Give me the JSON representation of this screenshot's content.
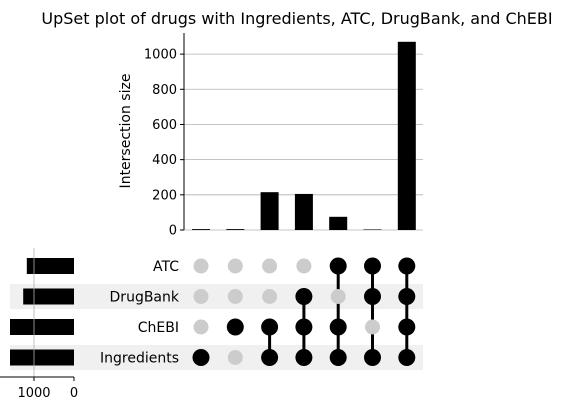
{
  "chart_data": {
    "type": "bar",
    "title": "UpSet plot of drugs with Ingredients, ATC, DrugBank, and ChEBI",
    "ylabel": "Intersection size",
    "ylim": [
      0,
      1120
    ],
    "yticks": [
      "0",
      "200",
      "400",
      "600",
      "800",
      "1000"
    ],
    "ytick_values": [
      0,
      200,
      400,
      600,
      800,
      1000
    ],
    "grid": true,
    "sets": [
      "ATC",
      "DrugBank",
      "ChEBI",
      "Ingredients"
    ],
    "set_sizes": [
      1180,
      1270,
      1600,
      1600
    ],
    "set_size_ticks": [
      "1000",
      "0"
    ],
    "set_size_tick_values": [
      1000,
      0
    ],
    "intersections": [
      {
        "members": [
          "Ingredients"
        ],
        "value": 5
      },
      {
        "members": [
          "ChEBI"
        ],
        "value": 5
      },
      {
        "members": [
          "ChEBI",
          "Ingredients"
        ],
        "value": 215
      },
      {
        "members": [
          "DrugBank",
          "ChEBI",
          "Ingredients"
        ],
        "value": 205
      },
      {
        "members": [
          "ATC",
          "ChEBI",
          "Ingredients"
        ],
        "value": 75
      },
      {
        "members": [
          "ATC",
          "DrugBank",
          "Ingredients"
        ],
        "value": 3
      },
      {
        "members": [
          "ATC",
          "DrugBank",
          "ChEBI",
          "Ingredients"
        ],
        "value": 1070
      }
    ],
    "colors": {
      "bar": "#000000",
      "active_dot": "#000000",
      "inactive_dot": "#cccccc",
      "stripe": "#f0f0f0",
      "grid": "#b0b0b0"
    }
  }
}
